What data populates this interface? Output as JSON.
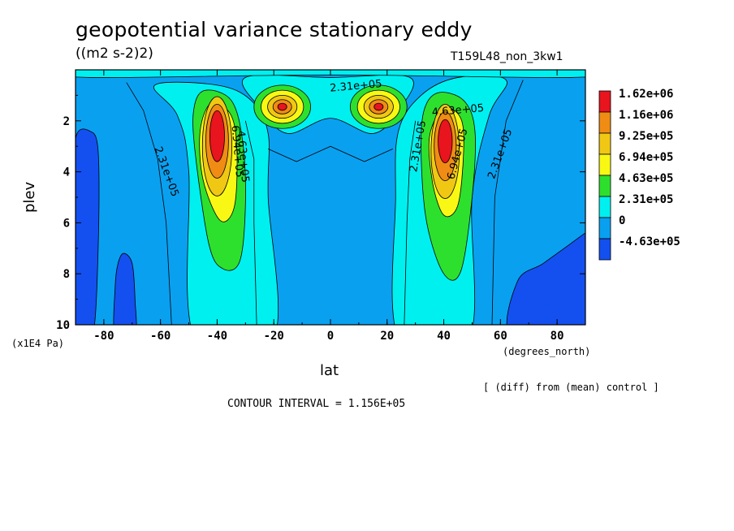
{
  "chart_data": {
    "type": "heatmap",
    "title": "geopotential variance stationary eddy",
    "units": "((m2 s-2)2)",
    "run_label": "T159L48_non_3kw1",
    "xlabel": "lat",
    "xunits": "(degrees_north)",
    "ylabel": "plev",
    "yunits": "(x1E4 Pa)",
    "note": "[ (diff) from (mean) control ]",
    "contour_interval_text": "CONTOUR INTERVAL = 1.156E+05",
    "xlim": [
      -90,
      90
    ],
    "ylim": [
      10,
      0
    ],
    "xticks": [
      -80,
      -60,
      -40,
      -20,
      0,
      20,
      40,
      60,
      80
    ],
    "yticks": [
      2,
      4,
      6,
      8,
      10
    ],
    "colorbar": {
      "labels": [
        "1.62e+06",
        "1.16e+06",
        "9.25e+05",
        "6.94e+05",
        "4.63e+05",
        "2.31e+05",
        "0",
        "-4.63e+05"
      ],
      "colors": [
        "#e8141e",
        "#f08c14",
        "#f0c814",
        "#f8f814",
        "#2ee02e",
        "#00f0f0",
        "#0aa0f0",
        "#1450f0"
      ]
    },
    "contour_labels": [
      {
        "text": "2.31e+05",
        "lat": -58,
        "plev": 4.0,
        "angle": 70
      },
      {
        "text": "2.31e+05",
        "lat": 9,
        "plev": 0.65,
        "angle": -5
      },
      {
        "text": "4.63e+05",
        "lat": 45,
        "plev": 1.6,
        "angle": -5
      },
      {
        "text": "2.31e+05",
        "lat": 31,
        "plev": 3.0,
        "angle": -80
      },
      {
        "text": "6.94e+05",
        "lat": 45,
        "plev": 3.3,
        "angle": -75
      },
      {
        "text": "2.31e+05",
        "lat": 60,
        "plev": 3.3,
        "angle": -70
      },
      {
        "text": "6.94e+05",
        "lat": -33,
        "plev": 3.2,
        "angle": 85
      },
      {
        "text": "4.63e+05",
        "lat": -31,
        "plev": 3.4,
        "angle": 85
      }
    ]
  }
}
